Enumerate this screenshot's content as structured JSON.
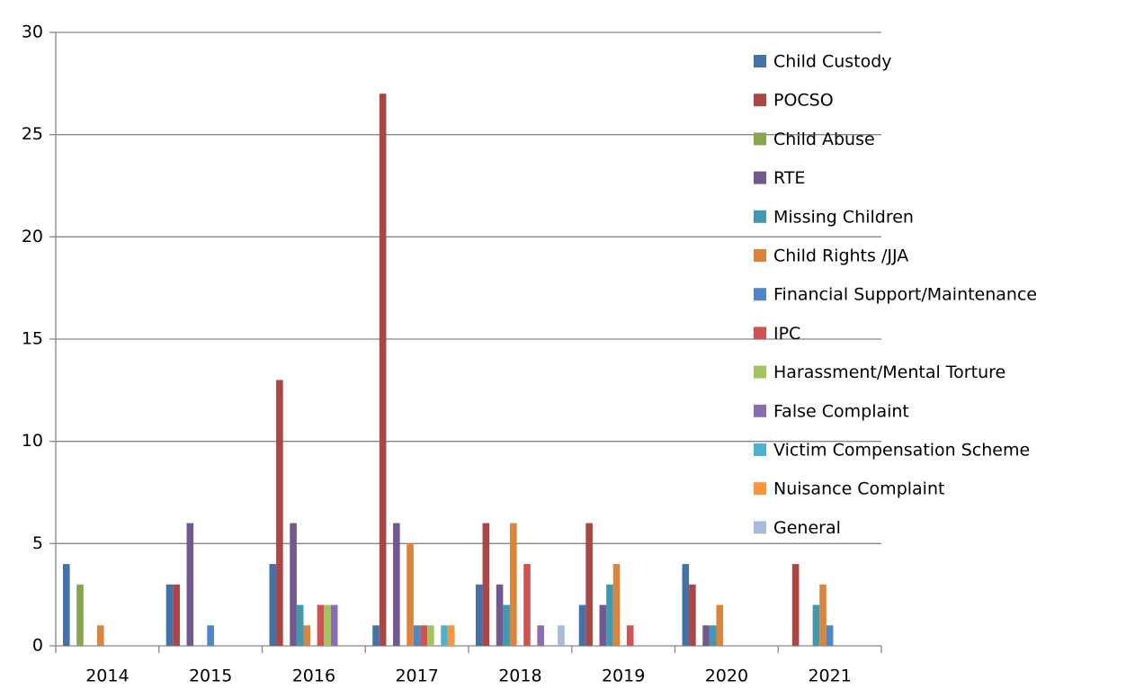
{
  "chart_data": {
    "type": "bar",
    "categories": [
      "2014",
      "2015",
      "2016",
      "2017",
      "2018",
      "2019",
      "2020",
      "2021"
    ],
    "series": [
      {
        "name": "Child Custody",
        "color": "#4472a8",
        "values": [
          4,
          3,
          4,
          1,
          3,
          2,
          4,
          0
        ]
      },
      {
        "name": "POCSO",
        "color": "#aa4643",
        "values": [
          0,
          3,
          13,
          27,
          6,
          6,
          3,
          4
        ]
      },
      {
        "name": "Child Abuse",
        "color": "#89a54e",
        "values": [
          3,
          0,
          0,
          0,
          0,
          0,
          0,
          0
        ]
      },
      {
        "name": "RTE",
        "color": "#71588f",
        "values": [
          0,
          6,
          6,
          6,
          3,
          2,
          1,
          0
        ]
      },
      {
        "name": "Missing Children",
        "color": "#4198af",
        "values": [
          0,
          0,
          2,
          0,
          2,
          3,
          1,
          2
        ]
      },
      {
        "name": "Child Rights /JJA",
        "color": "#db843d",
        "values": [
          1,
          0,
          1,
          5,
          6,
          4,
          2,
          3
        ]
      },
      {
        "name": "Financial Support/Maintenance",
        "color": "#4f86c6",
        "values": [
          0,
          1,
          0,
          1,
          0,
          0,
          0,
          1
        ]
      },
      {
        "name": "IPC",
        "color": "#cf5352",
        "values": [
          0,
          0,
          2,
          1,
          4,
          1,
          0,
          0
        ]
      },
      {
        "name": "Harassment/Mental Torture",
        "color": "#a3c35e",
        "values": [
          0,
          0,
          2,
          1,
          0,
          0,
          0,
          0
        ]
      },
      {
        "name": "False Complaint",
        "color": "#8a6cb0",
        "values": [
          0,
          0,
          2,
          0,
          1,
          0,
          0,
          0
        ]
      },
      {
        "name": "Victim Compensation Scheme",
        "color": "#4cb2cd",
        "values": [
          0,
          0,
          0,
          1,
          0,
          0,
          0,
          0
        ]
      },
      {
        "name": "Nuisance Complaint",
        "color": "#f7963e",
        "values": [
          0,
          0,
          0,
          1,
          0,
          0,
          0,
          0
        ]
      },
      {
        "name": "General",
        "color": "#a9bbdc",
        "values": [
          0,
          0,
          0,
          0,
          1,
          0,
          0,
          0
        ]
      }
    ],
    "ylim": [
      0,
      30
    ],
    "yticks": [
      0,
      5,
      10,
      15,
      20,
      25,
      30
    ],
    "grid": true,
    "legend": "right"
  }
}
